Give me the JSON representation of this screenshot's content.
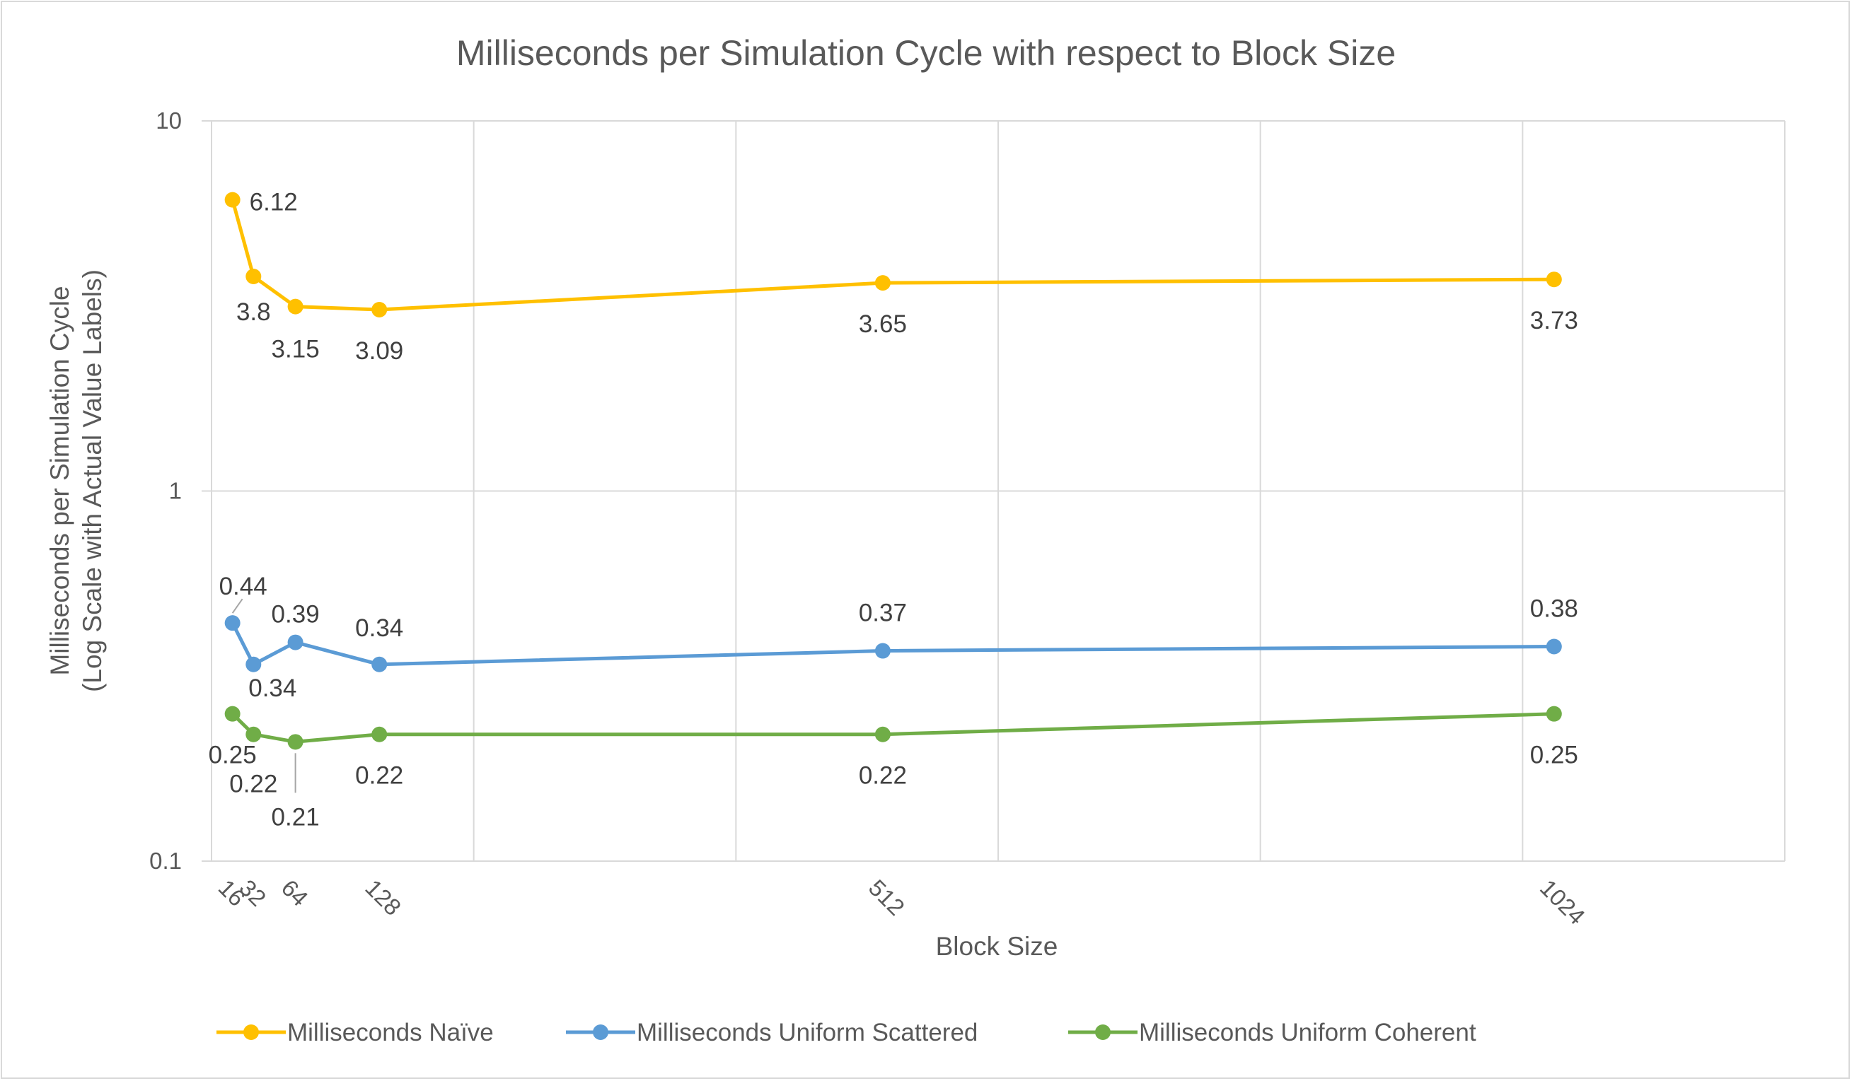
{
  "chart_data": {
    "type": "line",
    "title": "Milliseconds per Simulation Cycle with respect to Block Size",
    "xlabel": "Block Size",
    "ylabel_line1": "Milliseconds per Simulation Cycle",
    "ylabel_line2": "(Log Scale with Actual Value Labels)",
    "y_scale": "log",
    "ylim": [
      0.1,
      10
    ],
    "y_ticks": [
      0.1,
      1,
      10
    ],
    "y_tick_labels": [
      "0.1",
      "1",
      "10"
    ],
    "xlim": [
      0,
      1200
    ],
    "x": [
      16,
      32,
      64,
      128,
      512,
      1024
    ],
    "x_tick_labels": [
      "16",
      "32",
      "64",
      "128",
      "512",
      "1024"
    ],
    "grid": true,
    "legend_position": "bottom",
    "series": [
      {
        "name": "Milliseconds Naïve",
        "color": "#FFC000",
        "values": [
          6.12,
          3.8,
          3.15,
          3.09,
          3.65,
          3.73
        ],
        "labels": [
          "6.12",
          "3.8",
          "3.15",
          "3.09",
          "3.65",
          "3.73"
        ]
      },
      {
        "name": "Milliseconds Uniform Scattered",
        "color": "#5B9BD5",
        "values": [
          0.44,
          0.34,
          0.39,
          0.34,
          0.37,
          0.38
        ],
        "labels": [
          "0.44",
          "0.34",
          "0.39",
          "0.34",
          "0.37",
          "0.38"
        ]
      },
      {
        "name": "Milliseconds Uniform Coherent",
        "color": "#70AD47",
        "values": [
          0.25,
          0.22,
          0.21,
          0.22,
          0.22,
          0.25
        ],
        "labels": [
          "0.25",
          "0.22",
          "0.21",
          "0.22",
          "0.22",
          "0.25"
        ]
      }
    ]
  }
}
